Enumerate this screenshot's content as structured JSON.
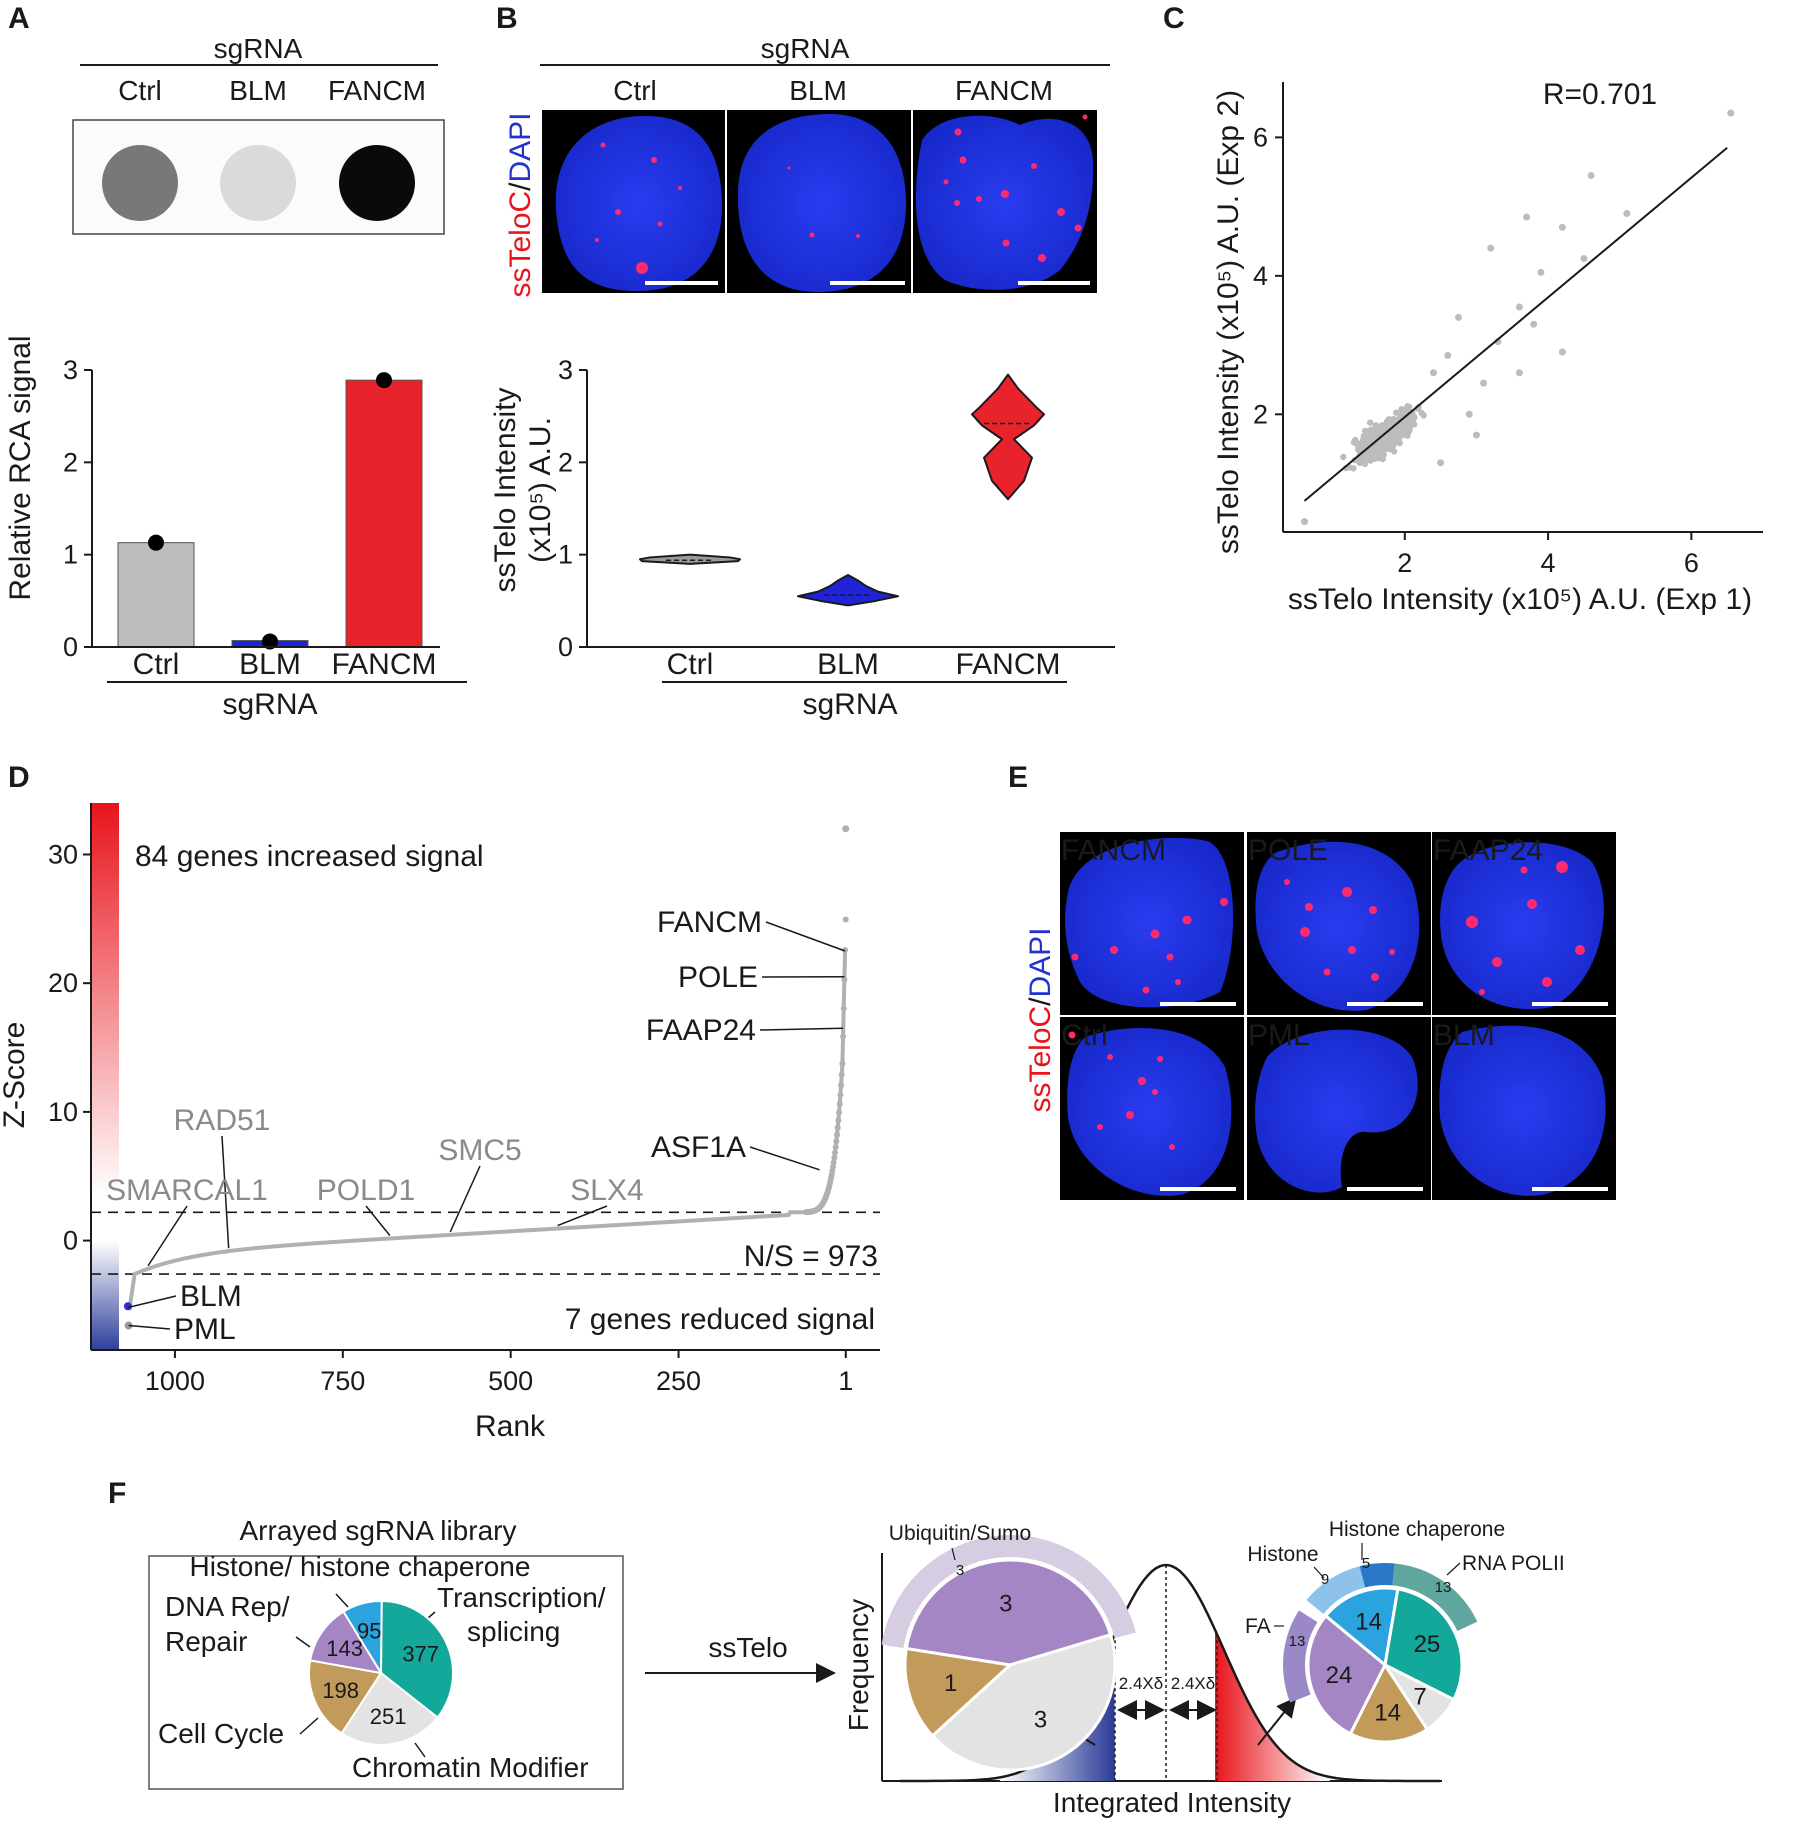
{
  "panels": {
    "A": {
      "letter": "A",
      "header": "sgRNA",
      "dot_labels": [
        "Ctrl",
        "BLM",
        "FANCM"
      ],
      "dot_intensity": [
        0.55,
        0.15,
        1.0
      ],
      "chart_data": {
        "type": "bar",
        "categories": [
          "Ctrl",
          "BLM",
          "FANCM"
        ],
        "values": [
          1.13,
          0.07,
          2.89
        ],
        "points": [
          1.13,
          0.06,
          2.89
        ],
        "colors": [
          "#bdbdbd",
          "#1f22d6",
          "#e8232b"
        ],
        "label_colors": [
          "#1a1a1a",
          "#2b2ed0",
          "#e0202a"
        ],
        "ylabel": "Relative RCA signal",
        "xlabel": "sgRNA",
        "ylim": [
          0,
          3
        ],
        "yticks": [
          "0",
          "1",
          "2",
          "3"
        ]
      }
    },
    "B": {
      "letter": "B",
      "header": "sgRNA",
      "image_labels": [
        "Ctrl",
        "BLM",
        "FANCM"
      ],
      "stain_label_red": "ssTeloC",
      "stain_label_sep": "/",
      "stain_label_blue": "DAPI",
      "chart_data": {
        "type": "violin",
        "categories": [
          "Ctrl",
          "BLM",
          "FANCM"
        ],
        "medians": [
          0.94,
          0.56,
          2.42
        ],
        "ranges": [
          [
            0.9,
            1.0
          ],
          [
            0.45,
            0.78
          ],
          [
            1.6,
            2.95
          ]
        ],
        "colors": [
          "#9a9a9a",
          "#1f22d6",
          "#e8232b"
        ],
        "label_colors": [
          "#1a1a1a",
          "#2b2ed0",
          "#e0202a"
        ],
        "ylabel_line1": "ssTelo Intensity",
        "ylabel_line2": "(x10⁵) A.U.",
        "xlabel": "sgRNA",
        "ylim": [
          0,
          3
        ],
        "yticks": [
          "0",
          "1",
          "2",
          "3"
        ]
      }
    },
    "C": {
      "letter": "C",
      "chart_data": {
        "type": "scatter",
        "annotation": "R=0.701",
        "xlabel": "ssTelo Intensity (x10⁵) A.U. (Exp 1)",
        "ylabel": "ssTelo Intensity (x10⁵) A.U.  (Exp 2)",
        "xticks": [
          "2",
          "4",
          "6"
        ],
        "yticks": [
          "2",
          "4",
          "6"
        ],
        "xlim": [
          0.3,
          7.0
        ],
        "ylim": [
          0.3,
          6.8
        ],
        "fit_line": [
          [
            0.6,
            0.75
          ],
          [
            6.5,
            5.85
          ]
        ],
        "outliers": [
          [
            6.55,
            6.35
          ],
          [
            4.6,
            5.45
          ],
          [
            3.7,
            4.85
          ],
          [
            5.1,
            4.9
          ],
          [
            4.2,
            4.7
          ],
          [
            3.2,
            4.4
          ],
          [
            3.9,
            4.05
          ],
          [
            4.5,
            4.25
          ],
          [
            3.6,
            3.55
          ],
          [
            3.3,
            3.05
          ],
          [
            2.75,
            3.4
          ],
          [
            3.8,
            3.3
          ],
          [
            3.6,
            2.6
          ],
          [
            4.2,
            2.9
          ],
          [
            3.1,
            2.45
          ],
          [
            2.9,
            2.0
          ],
          [
            2.6,
            2.85
          ],
          [
            2.4,
            2.6
          ],
          [
            3.0,
            1.7
          ],
          [
            2.5,
            1.3
          ],
          [
            0.6,
            0.45
          ]
        ],
        "cluster": {
          "x_center": 1.75,
          "y_center": 1.7,
          "x_spread": 0.45,
          "y_spread": 0.4,
          "n": 420
        }
      }
    },
    "D": {
      "letter": "D",
      "chart_data": {
        "type": "scatter",
        "xlabel": "Rank",
        "ylabel": "Z-Score",
        "xticks": [
          "1000",
          "750",
          "500",
          "250",
          "1"
        ],
        "yticks": [
          "0",
          "10",
          "20",
          "30"
        ],
        "xlim": [
          1125,
          -50
        ],
        "ylim": [
          -8.5,
          34
        ],
        "thresholds": [
          2.2,
          -2.6
        ],
        "increased_text": "84 genes increased signal",
        "reduced_text": "7 genes reduced signal",
        "ns_text": "N/S = 973",
        "labels_black": [
          {
            "name": "FANCM",
            "rank": 2,
            "z": 22.5
          },
          {
            "name": "POLE",
            "rank": 3,
            "z": 20.5
          },
          {
            "name": "FAAP24",
            "rank": 5,
            "z": 16.5
          },
          {
            "name": "ASF1A",
            "rank": 40,
            "z": 5.5
          },
          {
            "name": "BLM",
            "rank": 1070,
            "z": -5.2
          },
          {
            "name": "PML",
            "rank": 1069,
            "z": -6.6
          }
        ],
        "labels_gray": [
          {
            "name": "RAD51",
            "rank": 920
          },
          {
            "name": "SMARCAL1",
            "rank": 1040
          },
          {
            "name": "POLD1",
            "rank": 680
          },
          {
            "name": "SMC5",
            "rank": 590
          },
          {
            "name": "SLX4",
            "rank": 430
          }
        ]
      }
    },
    "E": {
      "letter": "E",
      "stain_label_red": "ssTeloC",
      "stain_label_sep": "/",
      "stain_label_blue": "DAPI",
      "tiles": [
        "FANCM",
        "POLE",
        "FAAP24",
        "Ctrl",
        "PML",
        "BLM"
      ]
    },
    "F": {
      "letter": "F",
      "library_title": "Arrayed sgRNA library",
      "library_labels": {
        "histone": "Histone/ histone chaperone",
        "dna_rep": "DNA Rep/",
        "repair": "Repair",
        "transcription": "Transcription/",
        "splicing": "splicing",
        "cell_cycle": "Cell Cycle",
        "chromatin": "Chromatin Modifier"
      },
      "library_pie": [
        {
          "label": "Histone/ histone chaperone",
          "value": 95,
          "color": "#2aa3de"
        },
        {
          "label": "Transcription/ splicing",
          "value": 377,
          "color": "#14a89b"
        },
        {
          "label": "Chromatin Modifier",
          "value": 251,
          "color": "#e3e3e3"
        },
        {
          "label": "Cell Cycle",
          "value": 198,
          "color": "#c29a5a"
        },
        {
          "label": "DNA Rep/ Repair",
          "value": 143,
          "color": "#a586c4"
        }
      ],
      "arrow_label": "ssTelo",
      "dist_xlabel": "Integrated Intensity",
      "dist_ylabel": "Frequency",
      "delta_label": "2.4Xδ",
      "low_pie": {
        "outer_label": "Ubiquitin/Sumo",
        "outer_value": "3",
        "slices": [
          {
            "value": 3,
            "color": "#a586c4"
          },
          {
            "value": 3,
            "color": "#e3e3e3"
          },
          {
            "value": 1,
            "color": "#c29a5a"
          }
        ]
      },
      "high_pie": {
        "outer_labels": {
          "histone_chaperone": "Histone chaperone",
          "histone": "Histone",
          "rna_polii": "RNA POLII",
          "fa": "FA"
        },
        "outer_values": {
          "histone": "9",
          "histone_chaperone": "5",
          "rna_polii": "13",
          "fa": "13"
        },
        "slices": [
          {
            "value": 14,
            "color": "#2aa3de"
          },
          {
            "value": 25,
            "color": "#14a89b"
          },
          {
            "value": 7,
            "color": "#e3e3e3"
          },
          {
            "value": 14,
            "color": "#c29a5a"
          },
          {
            "value": 24,
            "color": "#a586c4"
          }
        ]
      }
    }
  }
}
